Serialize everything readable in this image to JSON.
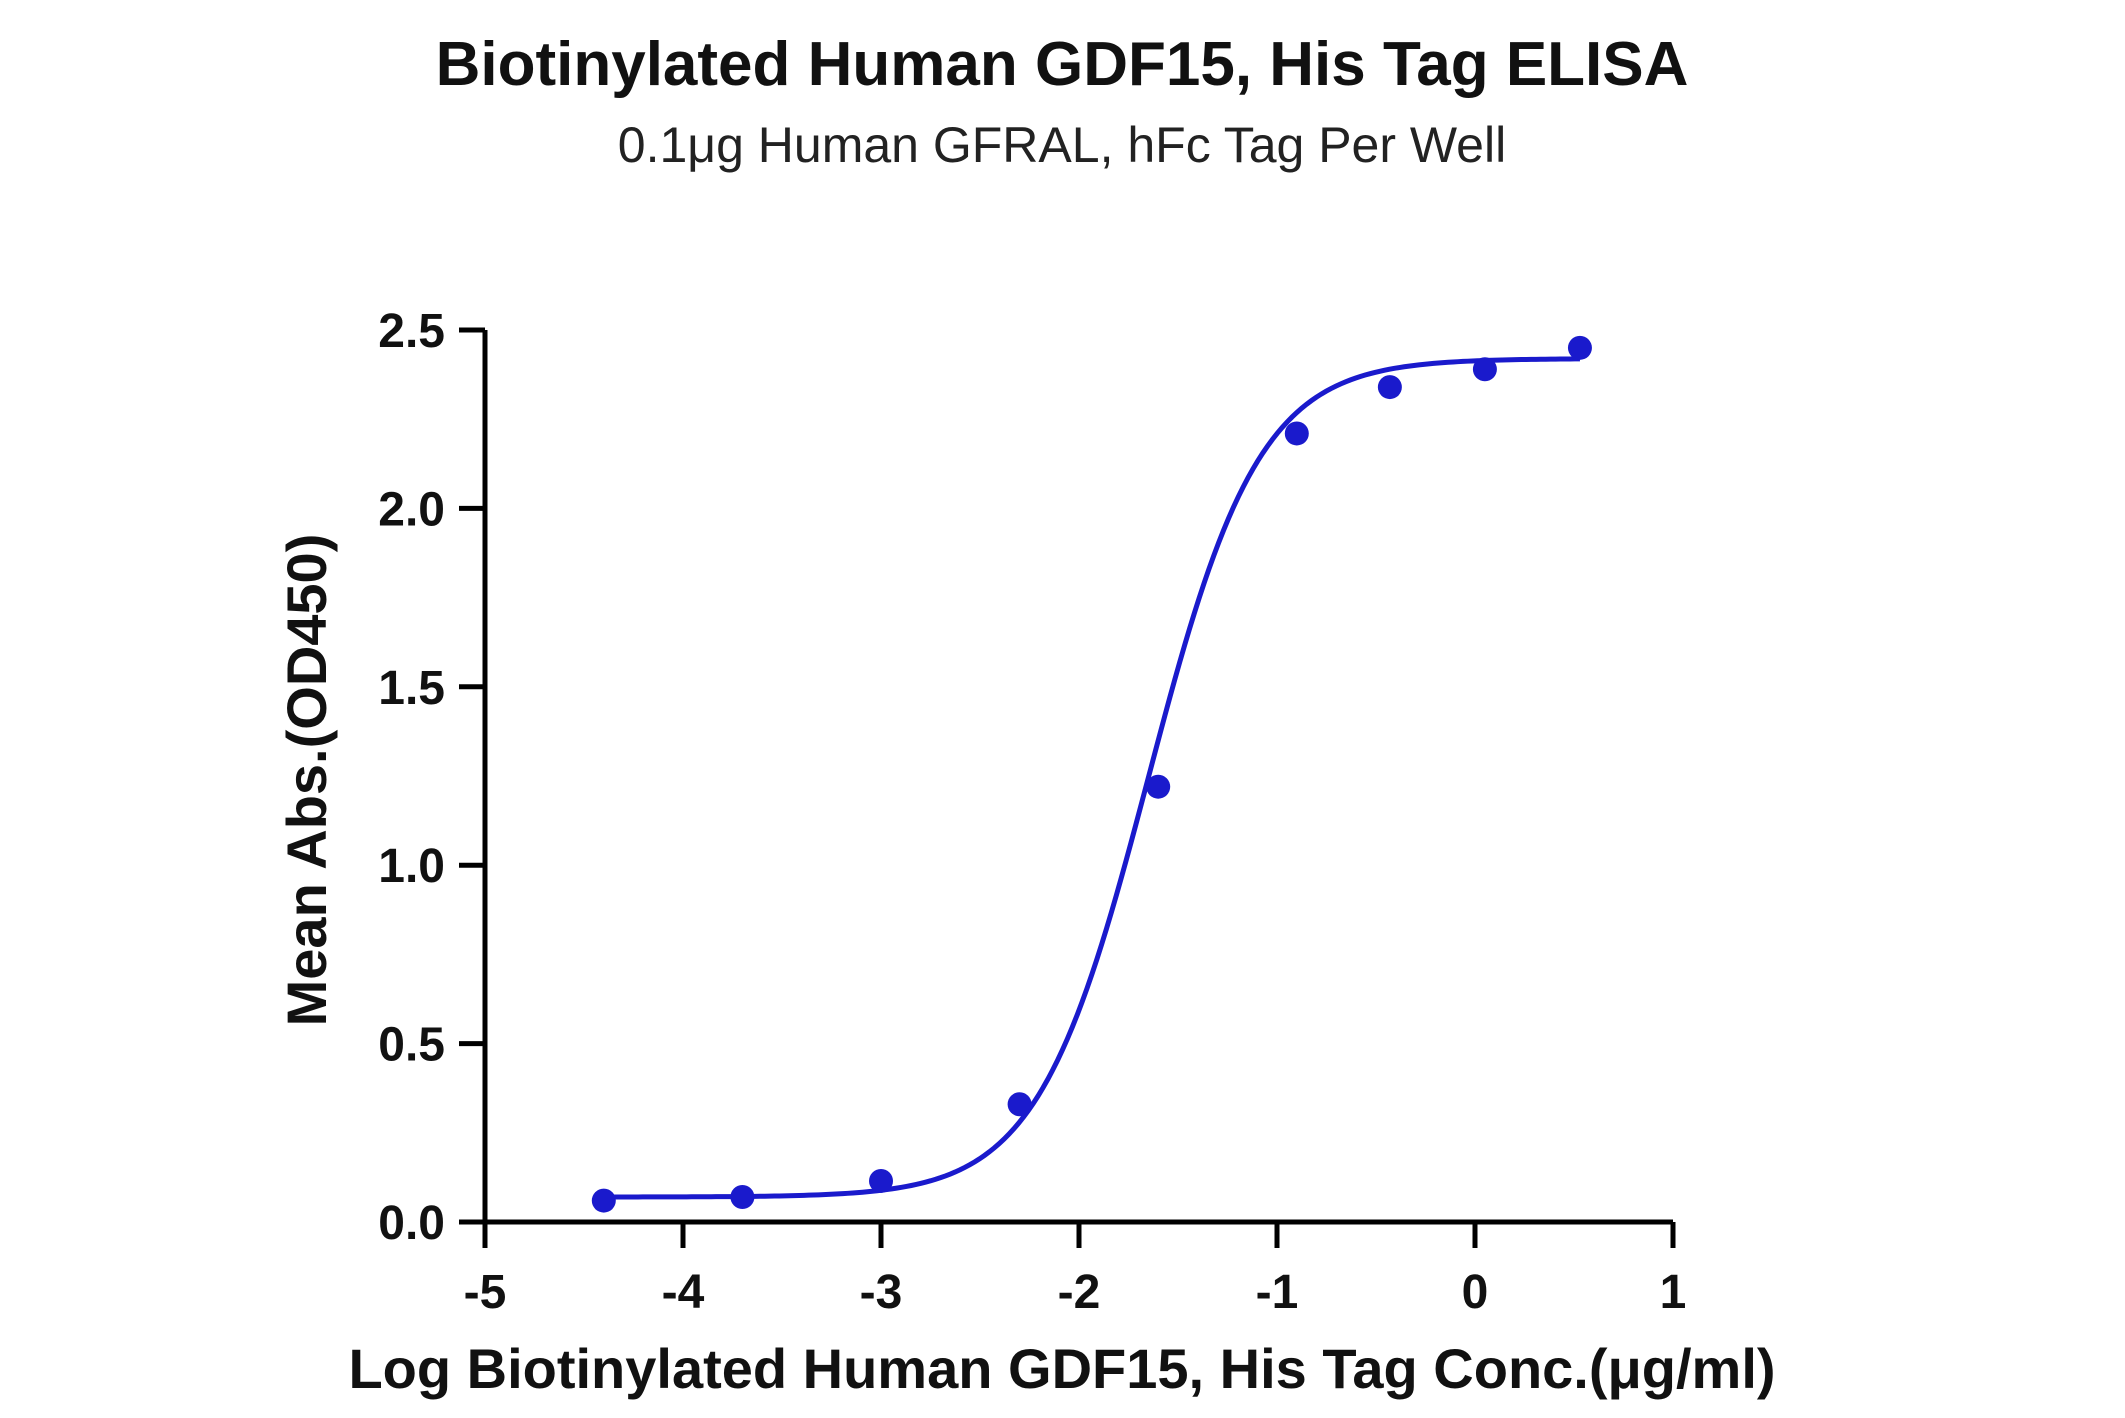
{
  "chart_data": {
    "type": "scatter",
    "title": "Biotinylated Human GDF15, His Tag ELISA",
    "subtitle": "0.1μg Human GFRAL, hFc Tag Per Well",
    "xlabel": "Log Biotinylated Human GDF15, His Tag Conc.(μg/ml)",
    "ylabel": "Mean Abs.(OD450)",
    "xlim": [
      -5,
      1
    ],
    "ylim": [
      0,
      2.5
    ],
    "xticks": [
      -5,
      -4,
      -3,
      -2,
      -1,
      0,
      1
    ],
    "xtick_labels": [
      "-5",
      "-4",
      "-3",
      "-2",
      "-1",
      "0",
      "1"
    ],
    "yticks": [
      0,
      0.5,
      1,
      1.5,
      2,
      2.5
    ],
    "ytick_labels": [
      "0.0",
      "0.5",
      "1.0",
      "1.5",
      "2.0",
      "2.5"
    ],
    "grid": false,
    "color": "#1a1acc",
    "series": [
      {
        "x": [
          -4.4,
          -3.7,
          -3.0,
          -2.3,
          -1.6,
          -0.9,
          -0.43,
          0.05,
          0.53
        ],
        "y": [
          0.06,
          0.07,
          0.115,
          0.33,
          1.22,
          2.21,
          2.34,
          2.39,
          2.45
        ]
      }
    ],
    "fit": {
      "type": "4PL",
      "bottom": 0.07,
      "top": 2.42,
      "log_ec50": -1.65,
      "hill": 1.55
    }
  }
}
